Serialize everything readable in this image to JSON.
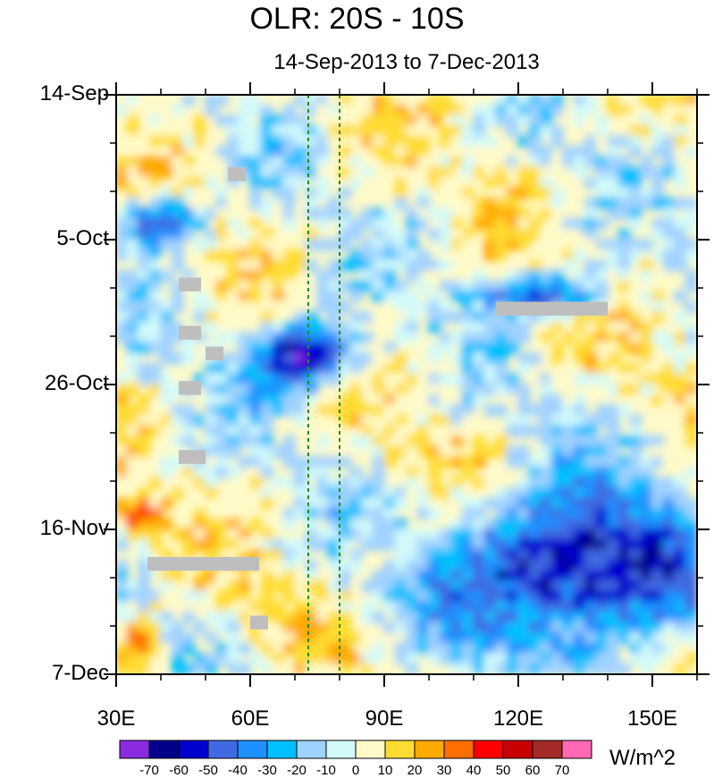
{
  "chart_data": {
    "type": "heatmap",
    "title": "OLR: 20S - 10S",
    "subtitle": "14-Sep-2013 to 7-Dec-2013",
    "x_axis": {
      "label": "",
      "range": [
        30,
        160
      ],
      "units": "degrees_east",
      "tick_values": [
        30,
        60,
        90,
        120,
        150
      ],
      "tick_labels": [
        "30E",
        "60E",
        "90E",
        "120E",
        "150E"
      ]
    },
    "y_axis": {
      "label": "",
      "range_days": [
        0,
        84
      ],
      "direction": "time increases downward",
      "tick_days": [
        0,
        21,
        42,
        63,
        84
      ],
      "tick_labels": [
        "14-Sep",
        "5-Oct",
        "26-Oct",
        "16-Nov",
        "7-Dec"
      ]
    },
    "colorbar": {
      "levels": [
        "-70",
        "-60",
        "-50",
        "-40",
        "-30",
        "-20",
        "-10",
        "0",
        "10",
        "20",
        "30",
        "40",
        "50",
        "60",
        "70"
      ],
      "colors": [
        "#8a2be2",
        "#00008b",
        "#0000cd",
        "#4169e1",
        "#1e90ff",
        "#00bfff",
        "#a0d2ff",
        "#d2fafa",
        "#fffac8",
        "#ffdc32",
        "#ffaa00",
        "#ff6e00",
        "#ff0000",
        "#c80000",
        "#a52a2a",
        "#ff69b4"
      ],
      "units": "W/m^2"
    },
    "reference_lines": [
      {
        "lon": 73,
        "style": "dashed",
        "color": "#228b22"
      },
      {
        "lon": 80,
        "style": "dashed",
        "color": "#228b22"
      }
    ],
    "missing_color": "#bebebe",
    "features": [
      {
        "label": "strong negative anomaly",
        "lon_range": [
          32,
          48
        ],
        "day_range": [
          15,
          22
        ],
        "value": -60
      },
      {
        "label": "negative anomaly band",
        "lon_range": [
          60,
          85
        ],
        "day_range": [
          33,
          43
        ],
        "value": -65
      },
      {
        "label": "negative anomaly",
        "lon_range": [
          112,
          140
        ],
        "day_range": [
          26,
          32
        ],
        "value": -50
      },
      {
        "label": "large negative anomaly",
        "lon_range": [
          105,
          160
        ],
        "day_range": [
          58,
          80
        ],
        "value": -70
      },
      {
        "label": "positive anomaly",
        "lon_range": [
          30,
          40
        ],
        "day_range": [
          59,
          64
        ],
        "value": 45
      },
      {
        "label": "positive anomaly",
        "lon_range": [
          30,
          40
        ],
        "day_range": [
          76,
          84
        ],
        "value": 35
      }
    ]
  }
}
